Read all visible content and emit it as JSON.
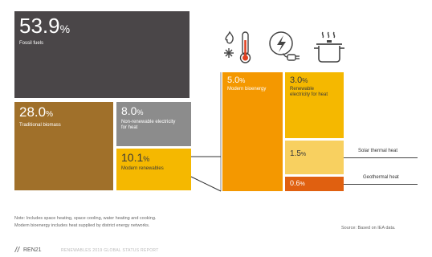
{
  "chart_data": {
    "type": "treemap",
    "title": "",
    "segments": [
      {
        "value": "53.9",
        "unit": "%",
        "label": "Fossil fuels",
        "color": "#4a4648"
      },
      {
        "value": "28.0",
        "unit": "%",
        "label": "Traditional biomass",
        "color": "#a0702a"
      },
      {
        "value": "8.0",
        "unit": "%",
        "label": "Non-renewable electricity for heat",
        "color": "#8c8c8c"
      },
      {
        "value": "10.1",
        "unit": "%",
        "label": "Modern renewables",
        "color": "#f5b800",
        "breakdown": [
          {
            "value": "5.0",
            "unit": "%",
            "label": "Modern bioenergy",
            "color": "#f49800"
          },
          {
            "value": "3.0",
            "unit": "%",
            "label": "Renewable electricity for heat",
            "color": "#f5b800"
          },
          {
            "value": "1.5",
            "unit": "%",
            "label": "Solar thermal heat",
            "color": "#f8d060"
          },
          {
            "value": "0.6",
            "unit": "%",
            "label": "Geothermal heat",
            "color": "#e06010"
          }
        ]
      }
    ],
    "callouts": [
      "Solar thermal heat",
      "Geothermal heat"
    ]
  },
  "icons": [
    "flame-snowflake-thermometer-icon",
    "electricity-plug-icon",
    "cooking-pot-icon"
  ],
  "notes": {
    "line1": "Note: Includes space heating, space cooling, water heating and cooking.",
    "line2": "Modern bioenergy includes heat supplied by district energy networks.",
    "source": "Source: Based on IEA data."
  },
  "footer": {
    "brand": "REN21",
    "report": "RENEWABLES 2019 GLOBAL STATUS REPORT"
  }
}
